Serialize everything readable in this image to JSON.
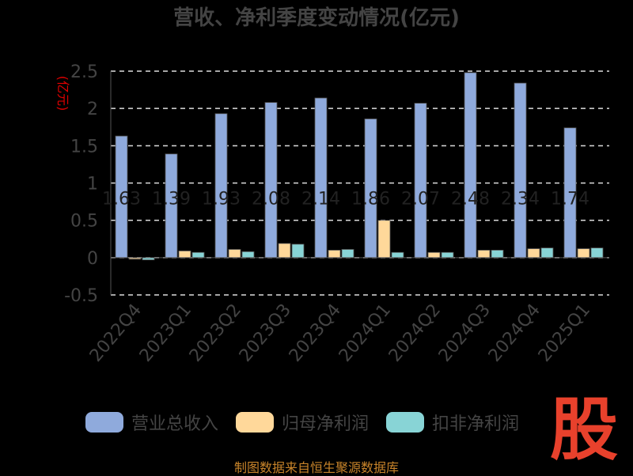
{
  "title": "营收、净利季度变动情况(亿元)",
  "footer": "制图数据来自恒生聚源数据库",
  "logo_text": "股",
  "chart_data": {
    "type": "bar",
    "ylabel": "(亿元)",
    "ylim": [
      -0.5,
      2.5
    ],
    "yticks": [
      -0.5,
      0,
      0.5,
      1,
      1.5,
      2,
      2.5
    ],
    "ytick_labels": [
      "-0.5",
      "0",
      "0.5",
      "1",
      "1.5",
      "2",
      "2.5"
    ],
    "grid": true,
    "legend_position": "bottom",
    "categories": [
      "2022Q4",
      "2023Q1",
      "2023Q2",
      "2023Q3",
      "2023Q4",
      "2024Q1",
      "2024Q2",
      "2024Q3",
      "2024Q4",
      "2025Q1"
    ],
    "series": [
      {
        "name": "营业总收入",
        "color": "#8faadc",
        "values": [
          1.63,
          1.39,
          1.93,
          2.08,
          2.14,
          1.86,
          2.07,
          2.48,
          2.34,
          1.74
        ]
      },
      {
        "name": "归母净利润",
        "color": "#ffd89a",
        "values": [
          -0.02,
          0.09,
          0.11,
          0.19,
          0.1,
          0.5,
          0.07,
          0.1,
          0.12,
          0.12
        ]
      },
      {
        "name": "扣非净利润",
        "color": "#88d4d6",
        "values": [
          -0.03,
          0.07,
          0.08,
          0.18,
          0.11,
          0.07,
          0.07,
          0.1,
          0.13,
          0.13
        ]
      }
    ],
    "data_labels": [
      "1.63",
      "1.39",
      "1.93",
      "2.08",
      "2.14",
      "1.86",
      "2.07",
      "2.48",
      "2.34",
      "1.74"
    ]
  }
}
